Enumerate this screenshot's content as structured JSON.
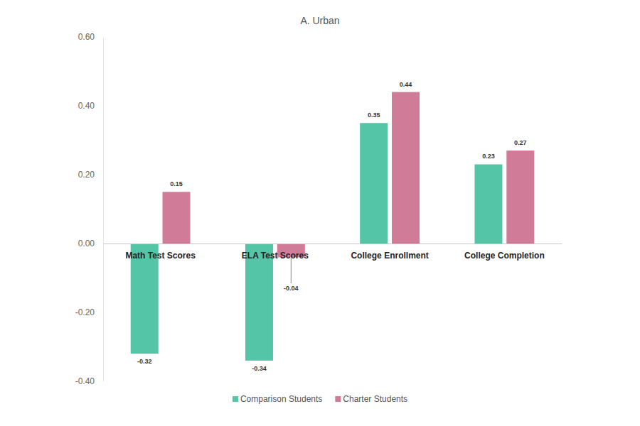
{
  "chart_data": {
    "type": "bar",
    "title": "A. Urban",
    "categories": [
      "Math Test Scores",
      "ELA Test Scores",
      "College Enrollment",
      "College Completion"
    ],
    "series": [
      {
        "name": "Comparison Students",
        "color": "#55c5a8",
        "values": [
          -0.32,
          -0.34,
          0.35,
          0.23
        ]
      },
      {
        "name": "Charter Students",
        "color": "#d07b97",
        "values": [
          0.15,
          -0.04,
          0.44,
          0.27
        ]
      }
    ],
    "ylim": [
      -0.4,
      0.6
    ],
    "yticks": [
      {
        "value": -0.4,
        "label": "-0.40"
      },
      {
        "value": -0.2,
        "label": "-0.20"
      },
      {
        "value": 0,
        "label": "0.00"
      },
      {
        "value": 0.2,
        "label": "0.20"
      },
      {
        "value": 0.4,
        "label": "0.40"
      },
      {
        "value": 0.6,
        "label": "0.60"
      }
    ],
    "grid": false,
    "data_labels": true,
    "legend": "bottom"
  }
}
